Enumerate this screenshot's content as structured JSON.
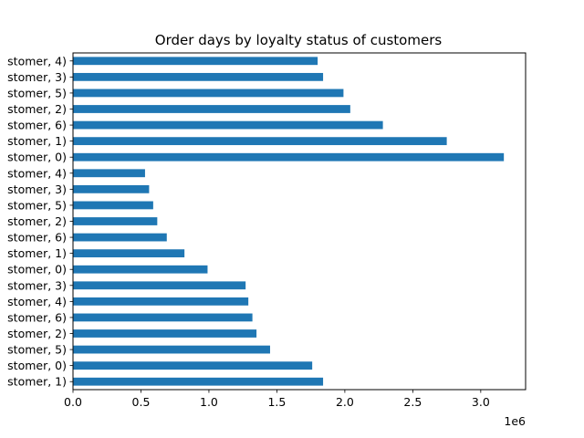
{
  "chart_data": {
    "type": "bar",
    "orientation": "horizontal",
    "title": "Order days by loyalty status of customers",
    "xlabel": "",
    "ylabel": "",
    "x_scale_label": "1e6",
    "xlim": [
      0,
      3330000
    ],
    "xticks": [
      0.0,
      0.5,
      1.0,
      1.5,
      2.0,
      2.5,
      3.0
    ],
    "xtick_labels": [
      "0.0",
      "0.5",
      "1.0",
      "1.5",
      "2.0",
      "2.5",
      "3.0"
    ],
    "grid": false,
    "legend": "none",
    "bar_color": "#1f77b4",
    "categories": [
      "stomer, 1)",
      "stomer, 0)",
      "stomer, 5)",
      "stomer, 2)",
      "stomer, 6)",
      "stomer, 4)",
      "stomer, 3)",
      "stomer, 0)",
      "stomer, 1)",
      "stomer, 6)",
      "stomer, 2)",
      "stomer, 5)",
      "stomer, 3)",
      "stomer, 4)",
      "stomer, 0)",
      "stomer, 1)",
      "stomer, 6)",
      "stomer, 2)",
      "stomer, 5)",
      "stomer, 3)",
      "stomer, 4)"
    ],
    "values": [
      1840000,
      1760000,
      1450000,
      1350000,
      1320000,
      1290000,
      1270000,
      990000,
      820000,
      690000,
      620000,
      590000,
      560000,
      530000,
      3170000,
      2750000,
      2280000,
      2040000,
      1990000,
      1840000,
      1800000
    ]
  }
}
